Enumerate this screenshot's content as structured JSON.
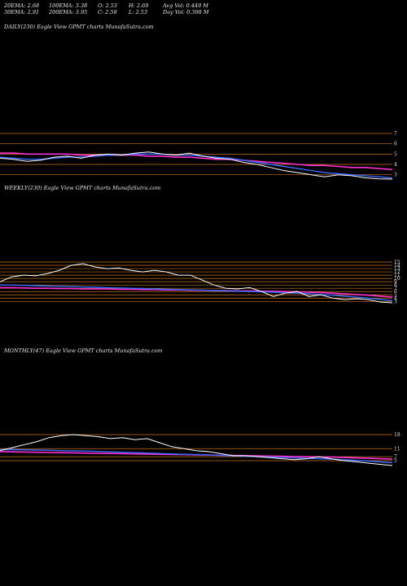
{
  "stats": {
    "row1": [
      "20EMA: 2.68",
      "100EMA: 3.38",
      "O: 2.53",
      "H: 2.69",
      "Avg Vol: 0.449 M"
    ],
    "row2": [
      "30EMA: 2.91",
      "200EMA: 3.95",
      "C: 2.58",
      "L: 2.53",
      "Day Vol: 0.398  M"
    ]
  },
  "colors": {
    "price": "#ffffff",
    "short_ema": "#3a6bff",
    "long_ema": "#ff2fd0",
    "mid_ema": "#d89a3a",
    "level_line": "#c9731e"
  },
  "chart_data": [
    {
      "type": "line",
      "title": "DAILY(230) Eagle   View  GPMT charts MunafaSutra.com",
      "y_ticks": [
        "7",
        "6",
        "5",
        "4",
        "3"
      ],
      "price": [
        4.6,
        4.5,
        4.3,
        4.4,
        4.7,
        4.8,
        4.6,
        4.9,
        5.0,
        4.9,
        5.1,
        5.2,
        5.0,
        4.9,
        5.1,
        4.8,
        4.6,
        4.5,
        4.2,
        4.0,
        3.7,
        3.4,
        3.2,
        3.0,
        2.8,
        3.0,
        2.9,
        2.7,
        2.6,
        2.58
      ],
      "ema_short": [
        4.7,
        4.6,
        4.5,
        4.5,
        4.6,
        4.7,
        4.7,
        4.8,
        4.9,
        4.9,
        5.0,
        5.0,
        5.0,
        4.9,
        4.9,
        4.8,
        4.7,
        4.6,
        4.4,
        4.2,
        4.0,
        3.8,
        3.6,
        3.4,
        3.2,
        3.1,
        3.0,
        2.9,
        2.8,
        2.68
      ],
      "ema_long": [
        5.1,
        5.1,
        5.0,
        5.0,
        5.0,
        5.0,
        4.9,
        4.9,
        4.9,
        4.9,
        4.9,
        4.8,
        4.8,
        4.7,
        4.7,
        4.6,
        4.5,
        4.5,
        4.4,
        4.3,
        4.2,
        4.1,
        4.0,
        3.9,
        3.9,
        3.8,
        3.7,
        3.7,
        3.6,
        3.5
      ],
      "levels": [
        7.0,
        6.0,
        5.0,
        4.0,
        3.0
      ]
    },
    {
      "type": "line",
      "title": "WEEKLY(230) Eagle   View  GPMT charts MunafaSutra.com",
      "y_ticks": [
        "15",
        "14",
        "13",
        "12",
        "11",
        "10",
        "9",
        "8",
        "7",
        "6",
        "5",
        "4",
        "3"
      ],
      "price": [
        9.0,
        10.5,
        11.0,
        10.8,
        11.5,
        12.5,
        14.0,
        14.5,
        13.5,
        13.0,
        13.2,
        12.5,
        12.0,
        12.5,
        12.0,
        11.0,
        11.0,
        9.5,
        8.0,
        7.0,
        6.8,
        7.2,
        6.0,
        4.5,
        5.5,
        6.0,
        4.5,
        5.0,
        4.0,
        3.5,
        3.8,
        3.5,
        2.8,
        2.58
      ],
      "ema_short": [
        8.0,
        8.0,
        7.9,
        7.8,
        7.7,
        7.6,
        7.5,
        7.4,
        7.3,
        7.2,
        7.1,
        7.0,
        6.9,
        6.8,
        6.7,
        6.6,
        6.5,
        6.4,
        6.3,
        6.2,
        6.1,
        6.0,
        5.9,
        5.8,
        5.6,
        5.5,
        5.3,
        5.1,
        4.9,
        4.6,
        4.3,
        4.0,
        3.6,
        3.2
      ],
      "ema_long": [
        7.2,
        7.2,
        7.1,
        7.0,
        7.0,
        6.9,
        6.9,
        6.8,
        6.8,
        6.8,
        6.7,
        6.7,
        6.6,
        6.6,
        6.5,
        6.5,
        6.4,
        6.4,
        6.3,
        6.3,
        6.2,
        6.2,
        6.1,
        6.1,
        6.0,
        5.9,
        5.8,
        5.7,
        5.5,
        5.3,
        5.1,
        4.9,
        4.6,
        4.3
      ],
      "levels": [
        15,
        14,
        13,
        12,
        11,
        10,
        9,
        8,
        7,
        6,
        5,
        4,
        3
      ]
    },
    {
      "type": "line",
      "title": "MONTHLY(47) Eagle   View  GPMT charts MunafaSutra.com",
      "y_ticks": [
        "18",
        "11",
        "7",
        "5"
      ],
      "price": [
        10.0,
        11.5,
        13.0,
        14.5,
        16.5,
        17.5,
        18.0,
        17.5,
        17.0,
        16.0,
        16.5,
        15.5,
        16.0,
        14.0,
        12.0,
        11.0,
        10.0,
        9.5,
        8.5,
        7.5,
        7.5,
        7.0,
        6.5,
        6.0,
        5.5,
        6.0,
        7.0,
        6.0,
        5.0,
        4.5,
        3.8,
        3.2,
        2.58
      ],
      "ema_short": [
        10.5,
        10.5,
        10.4,
        10.3,
        10.2,
        10.0,
        9.9,
        9.8,
        9.6,
        9.4,
        9.2,
        9.0,
        8.8,
        8.6,
        8.4,
        8.2,
        8.0,
        7.8,
        7.6,
        7.4,
        7.2,
        7.0,
        6.8,
        6.6,
        6.4,
        6.2,
        6.0,
        5.8,
        5.5,
        5.2,
        4.8,
        4.4,
        4.0
      ],
      "ema_long": [
        9.5,
        9.4,
        9.3,
        9.2,
        9.1,
        9.0,
        8.9,
        8.8,
        8.7,
        8.6,
        8.5,
        8.4,
        8.3,
        8.2,
        8.1,
        8.0,
        7.9,
        7.8,
        7.7,
        7.6,
        7.5,
        7.4,
        7.3,
        7.2,
        7.1,
        7.0,
        6.9,
        6.8,
        6.6,
        6.4,
        6.2,
        6.0,
        5.8
      ],
      "levels": [
        18,
        11,
        7,
        5
      ]
    }
  ]
}
